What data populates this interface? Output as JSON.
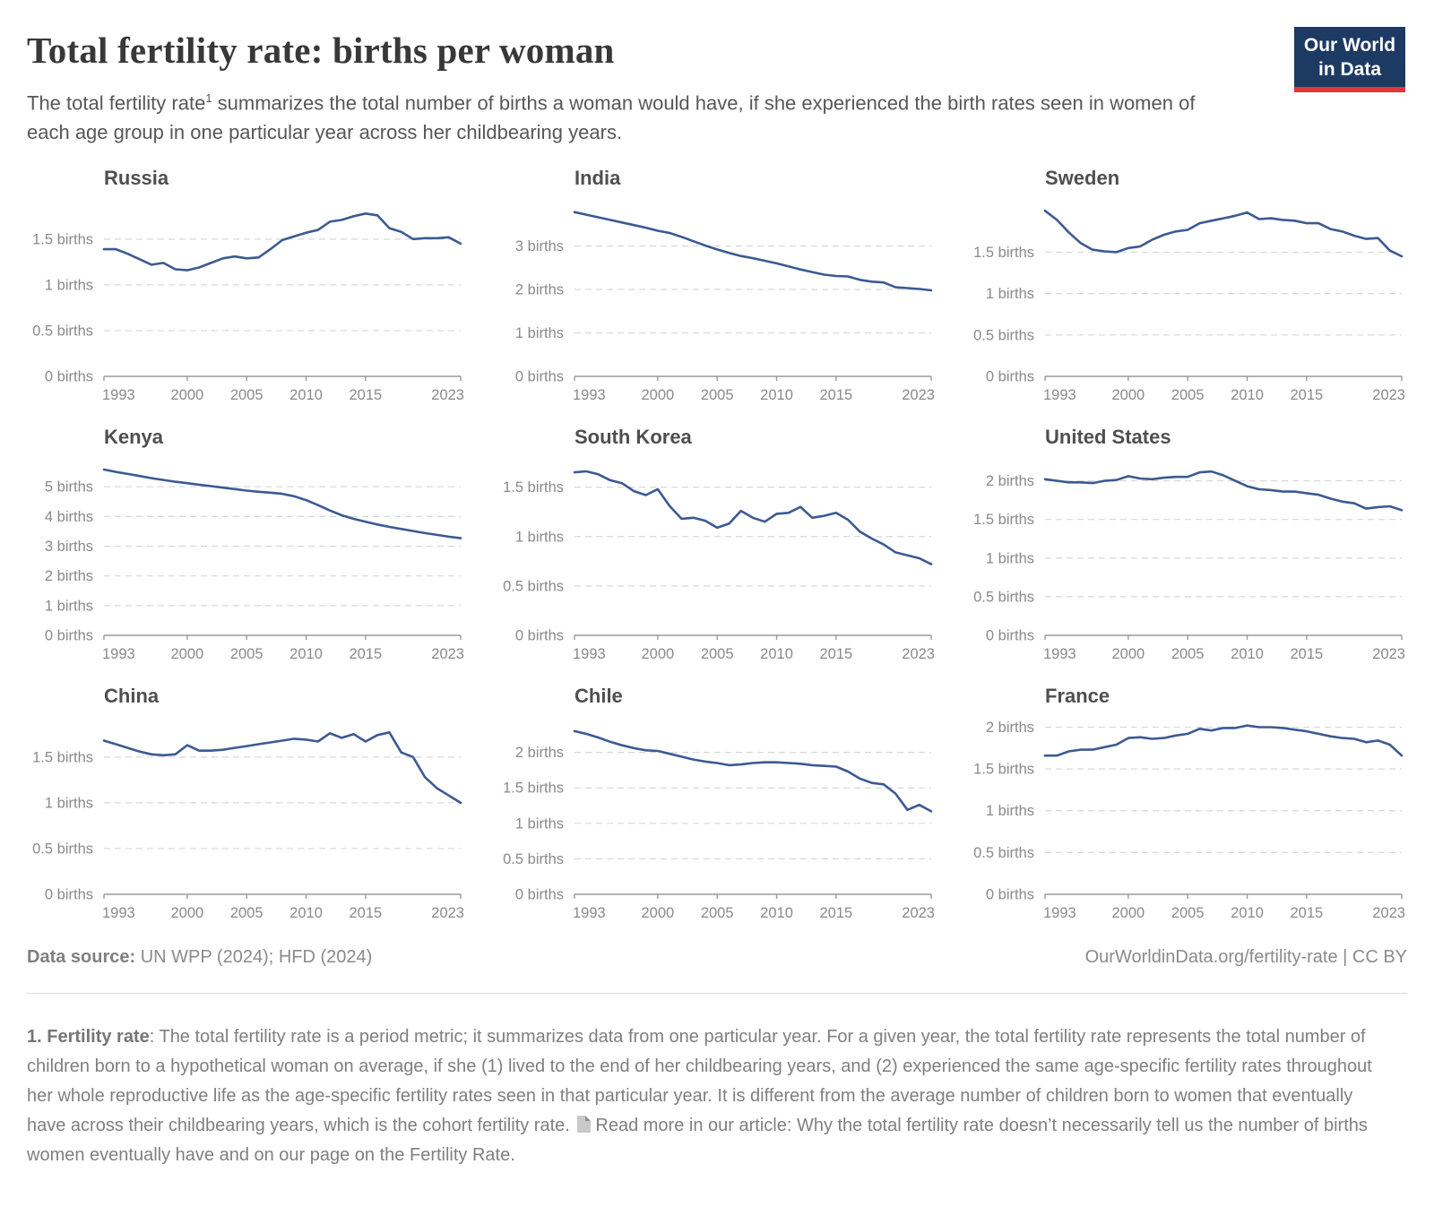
{
  "header": {
    "title": "Total fertility rate: births per woman",
    "subtitle_pre": "The total fertility rate",
    "subtitle_sup": "1",
    "subtitle_post": " summarizes the total number of births a woman would have, if she experienced the birth rates seen in women of each age group in one particular year across her childbearing years.",
    "logo_line1": "Our World",
    "logo_line2": "in Data"
  },
  "footer": {
    "source_label": "Data source:",
    "source_value": " UN WPP (2024); HFD (2024)",
    "credit": "OurWorldinData.org/fertility-rate | CC BY"
  },
  "footnote": {
    "label": "1. Fertility rate",
    "body": ": The total fertility rate is a period metric; it summarizes data from one particular year. For a given year, the total fertility rate represents the total number of children born to a hypothetical woman on average, if she (1) lived to the end of her childbearing years, and (2) experienced the same age-specific fertility rates throughout her whole reproductive life as the age-specific fertility rates seen in that particular year. It is different from the average number of children born to women that eventually have across their childbearing years, which is the cohort fertility rate.",
    "read_more": "Read more in our article: Why the total fertility rate doesn’t necessarily tell us the number of births women eventually have and on our page on the Fertility Rate."
  },
  "colors": {
    "line": "#3b5a93",
    "grid": "#d7d7d7",
    "axis": "#9a9a9a",
    "tick_label": "#8a8a8a",
    "facet_title": "#4f4f4f",
    "logo_bg": "#1d3a63",
    "logo_red": "#e0383a"
  },
  "chart_meta": {
    "x_start": 1993,
    "x_end": 2023,
    "x_ticks": [
      1993,
      2000,
      2005,
      2010,
      2015,
      2023
    ],
    "y_unit": "births",
    "grid": "dashed",
    "legend": "none"
  },
  "chart_data": [
    {
      "type": "line",
      "title": "Russia",
      "y_ticks": [
        0,
        0.5,
        1,
        1.5
      ],
      "ylim": [
        0,
        1.9
      ],
      "values": [
        1.39,
        1.39,
        1.34,
        1.28,
        1.22,
        1.24,
        1.17,
        1.16,
        1.19,
        1.24,
        1.29,
        1.31,
        1.29,
        1.3,
        1.39,
        1.49,
        1.53,
        1.57,
        1.6,
        1.69,
        1.71,
        1.75,
        1.78,
        1.76,
        1.62,
        1.58,
        1.5,
        1.51,
        1.51,
        1.52,
        1.45
      ]
    },
    {
      "type": "line",
      "title": "India",
      "y_ticks": [
        0,
        1,
        2,
        3
      ],
      "ylim": [
        0,
        4.0
      ],
      "values": [
        3.78,
        3.72,
        3.66,
        3.6,
        3.54,
        3.48,
        3.42,
        3.35,
        3.3,
        3.21,
        3.11,
        3.01,
        2.92,
        2.84,
        2.77,
        2.72,
        2.66,
        2.6,
        2.53,
        2.46,
        2.4,
        2.34,
        2.31,
        2.3,
        2.22,
        2.18,
        2.16,
        2.05,
        2.03,
        2.01,
        1.98
      ]
    },
    {
      "type": "line",
      "title": "Sweden",
      "y_ticks": [
        0,
        0.5,
        1,
        1.5
      ],
      "ylim": [
        0,
        2.1
      ],
      "values": [
        2.0,
        1.89,
        1.74,
        1.61,
        1.53,
        1.51,
        1.5,
        1.55,
        1.57,
        1.65,
        1.71,
        1.75,
        1.77,
        1.85,
        1.88,
        1.91,
        1.94,
        1.98,
        1.9,
        1.91,
        1.89,
        1.88,
        1.85,
        1.85,
        1.78,
        1.75,
        1.7,
        1.66,
        1.67,
        1.52,
        1.45
      ]
    },
    {
      "type": "line",
      "title": "Kenya",
      "y_ticks": [
        0,
        1,
        2,
        3,
        4,
        5
      ],
      "ylim": [
        0,
        5.85
      ],
      "values": [
        5.58,
        5.5,
        5.43,
        5.36,
        5.29,
        5.23,
        5.17,
        5.12,
        5.07,
        5.02,
        4.97,
        4.92,
        4.87,
        4.83,
        4.8,
        4.76,
        4.68,
        4.55,
        4.38,
        4.2,
        4.04,
        3.92,
        3.82,
        3.73,
        3.65,
        3.58,
        3.51,
        3.44,
        3.38,
        3.32,
        3.27
      ]
    },
    {
      "type": "line",
      "title": "South Korea",
      "y_ticks": [
        0,
        0.5,
        1,
        1.5
      ],
      "ylim": [
        0,
        1.76
      ],
      "values": [
        1.65,
        1.66,
        1.63,
        1.57,
        1.54,
        1.46,
        1.42,
        1.48,
        1.31,
        1.18,
        1.19,
        1.16,
        1.09,
        1.13,
        1.26,
        1.19,
        1.15,
        1.23,
        1.24,
        1.3,
        1.19,
        1.21,
        1.24,
        1.17,
        1.05,
        0.98,
        0.92,
        0.84,
        0.81,
        0.78,
        0.72
      ]
    },
    {
      "type": "line",
      "title": "United States",
      "y_ticks": [
        0,
        0.5,
        1,
        1.5,
        2
      ],
      "ylim": [
        0,
        2.25
      ],
      "values": [
        2.02,
        2.0,
        1.98,
        1.98,
        1.97,
        2.0,
        2.01,
        2.06,
        2.03,
        2.02,
        2.04,
        2.05,
        2.05,
        2.11,
        2.12,
        2.07,
        2.0,
        1.93,
        1.89,
        1.88,
        1.86,
        1.86,
        1.84,
        1.82,
        1.77,
        1.73,
        1.71,
        1.64,
        1.66,
        1.67,
        1.62
      ]
    },
    {
      "type": "line",
      "title": "China",
      "y_ticks": [
        0,
        0.5,
        1,
        1.5
      ],
      "ylim": [
        0,
        1.9
      ],
      "values": [
        1.68,
        1.64,
        1.6,
        1.56,
        1.53,
        1.52,
        1.53,
        1.63,
        1.57,
        1.57,
        1.58,
        1.6,
        1.62,
        1.64,
        1.66,
        1.68,
        1.7,
        1.69,
        1.67,
        1.76,
        1.71,
        1.75,
        1.67,
        1.74,
        1.77,
        1.55,
        1.5,
        1.28,
        1.16,
        1.08,
        1.0
      ]
    },
    {
      "type": "line",
      "title": "Chile",
      "y_ticks": [
        0,
        0.5,
        1,
        1.5,
        2
      ],
      "ylim": [
        0,
        2.45
      ],
      "values": [
        2.3,
        2.26,
        2.21,
        2.15,
        2.1,
        2.06,
        2.03,
        2.02,
        1.98,
        1.94,
        1.9,
        1.87,
        1.85,
        1.82,
        1.83,
        1.85,
        1.86,
        1.86,
        1.85,
        1.84,
        1.82,
        1.81,
        1.8,
        1.73,
        1.63,
        1.57,
        1.55,
        1.42,
        1.19,
        1.26,
        1.17
      ]
    },
    {
      "type": "line",
      "title": "France",
      "y_ticks": [
        0,
        0.5,
        1,
        1.5,
        2
      ],
      "ylim": [
        0,
        2.08
      ],
      "values": [
        1.66,
        1.66,
        1.71,
        1.73,
        1.73,
        1.76,
        1.79,
        1.87,
        1.88,
        1.86,
        1.87,
        1.9,
        1.92,
        1.98,
        1.96,
        1.99,
        1.99,
        2.02,
        2.0,
        2.0,
        1.99,
        1.97,
        1.95,
        1.92,
        1.89,
        1.87,
        1.86,
        1.82,
        1.84,
        1.79,
        1.66
      ]
    }
  ]
}
